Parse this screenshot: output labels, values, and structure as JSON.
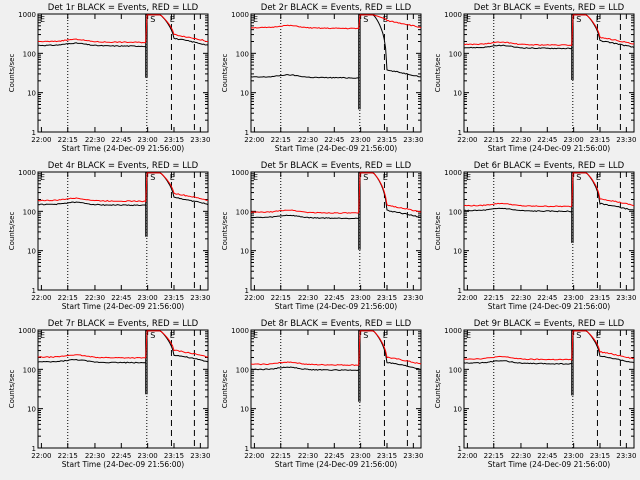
{
  "chart_data": [
    {
      "type": "line",
      "title": "Det 1r BLACK = Events, RED = LLD",
      "ylabel": "Counts/sec",
      "xlabel": "Start Time (24-Dec-09 21:56:00)",
      "yscale": "log",
      "ylim": [
        1,
        1000
      ],
      "x_ticks": [
        "22:00",
        "22:15",
        "22:30",
        "22:45",
        "23:00",
        "23:15",
        "23:30"
      ],
      "y_ticks": [
        "1",
        "10",
        "100",
        "1000"
      ],
      "annotations": [
        "E",
        "S",
        "E"
      ],
      "series": [
        {
          "name": "Events",
          "color": "#000000",
          "base": 160
        },
        {
          "name": "LLD",
          "color": "#ff0000",
          "base": 200
        }
      ]
    },
    {
      "type": "line",
      "title": "Det 2r BLACK = Events, RED = LLD",
      "ylabel": "Counts/sec",
      "xlabel": "Start Time (24-Dec-09 21:56:00)",
      "yscale": "log",
      "ylim": [
        1,
        1000
      ],
      "x_ticks": [
        "22:00",
        "22:15",
        "22:30",
        "22:45",
        "23:00",
        "23:15",
        "23:30"
      ],
      "y_ticks": [
        "1",
        "10",
        "100",
        "1000"
      ],
      "annotations": [
        "E",
        "S",
        "E"
      ],
      "series": [
        {
          "name": "Events",
          "color": "#000000",
          "base": 25
        },
        {
          "name": "LLD",
          "color": "#ff0000",
          "base": 450
        }
      ]
    },
    {
      "type": "line",
      "title": "Det 3r BLACK = Events, RED = LLD",
      "ylabel": "Counts/sec",
      "xlabel": "Start Time (24-Dec-09 21:56:00)",
      "yscale": "log",
      "ylim": [
        1,
        1000
      ],
      "x_ticks": [
        "22:00",
        "22:15",
        "22:30",
        "22:45",
        "23:00",
        "23:15",
        "23:30"
      ],
      "y_ticks": [
        "1",
        "10",
        "100",
        "1000"
      ],
      "annotations": [
        "E",
        "S",
        "E"
      ],
      "series": [
        {
          "name": "Events",
          "color": "#000000",
          "base": 140
        },
        {
          "name": "LLD",
          "color": "#ff0000",
          "base": 170
        }
      ]
    },
    {
      "type": "line",
      "title": "Det 4r BLACK = Events, RED = LLD",
      "ylabel": "Counts/sec",
      "xlabel": "Start Time (24-Dec-09 21:56:00)",
      "yscale": "log",
      "ylim": [
        1,
        1000
      ],
      "x_ticks": [
        "22:00",
        "22:15",
        "22:30",
        "22:45",
        "23:00",
        "23:15",
        "23:30"
      ],
      "y_ticks": [
        "1",
        "10",
        "100",
        "1000"
      ],
      "annotations": [
        "E",
        "S",
        "E"
      ],
      "series": [
        {
          "name": "Events",
          "color": "#000000",
          "base": 150
        },
        {
          "name": "LLD",
          "color": "#ff0000",
          "base": 190
        }
      ]
    },
    {
      "type": "line",
      "title": "Det 5r BLACK = Events, RED = LLD",
      "ylabel": "Counts/sec",
      "xlabel": "Start Time (24-Dec-09 21:56:00)",
      "yscale": "log",
      "ylim": [
        1,
        1000
      ],
      "x_ticks": [
        "22:00",
        "22:15",
        "22:30",
        "22:45",
        "23:00",
        "23:15",
        "23:30"
      ],
      "y_ticks": [
        "1",
        "10",
        "100",
        "1000"
      ],
      "annotations": [
        "E",
        "S",
        "E"
      ],
      "series": [
        {
          "name": "Events",
          "color": "#000000",
          "base": 70
        },
        {
          "name": "LLD",
          "color": "#ff0000",
          "base": 95
        }
      ]
    },
    {
      "type": "line",
      "title": "Det 6r BLACK = Events, RED = LLD",
      "ylabel": "Counts/sec",
      "xlabel": "Start Time (24-Dec-09 21:56:00)",
      "yscale": "log",
      "ylim": [
        1,
        1000
      ],
      "x_ticks": [
        "22:00",
        "22:15",
        "22:30",
        "22:45",
        "23:00",
        "23:15",
        "23:30"
      ],
      "y_ticks": [
        "1",
        "10",
        "100",
        "1000"
      ],
      "annotations": [
        "E",
        "S",
        "E"
      ],
      "series": [
        {
          "name": "Events",
          "color": "#000000",
          "base": 105
        },
        {
          "name": "LLD",
          "color": "#ff0000",
          "base": 140
        }
      ]
    },
    {
      "type": "line",
      "title": "Det 7r BLACK = Events, RED = LLD",
      "ylabel": "Counts/sec",
      "xlabel": "Start Time (24-Dec-09 21:56:00)",
      "yscale": "log",
      "ylim": [
        1,
        1000
      ],
      "x_ticks": [
        "22:00",
        "22:15",
        "22:30",
        "22:45",
        "23:00",
        "23:15",
        "23:30"
      ],
      "y_ticks": [
        "1",
        "10",
        "100",
        "1000"
      ],
      "annotations": [
        "E",
        "S",
        "E"
      ],
      "series": [
        {
          "name": "Events",
          "color": "#000000",
          "base": 155
        },
        {
          "name": "LLD",
          "color": "#ff0000",
          "base": 205
        }
      ]
    },
    {
      "type": "line",
      "title": "Det 8r BLACK = Events, RED = LLD",
      "ylabel": "Counts/sec",
      "xlabel": "Start Time (24-Dec-09 21:56:00)",
      "yscale": "log",
      "ylim": [
        1,
        1000
      ],
      "x_ticks": [
        "22:00",
        "22:15",
        "22:30",
        "22:45",
        "23:00",
        "23:15",
        "23:30"
      ],
      "y_ticks": [
        "1",
        "10",
        "100",
        "1000"
      ],
      "annotations": [
        "E",
        "S",
        "E"
      ],
      "series": [
        {
          "name": "Events",
          "color": "#000000",
          "base": 100
        },
        {
          "name": "LLD",
          "color": "#ff0000",
          "base": 135
        }
      ]
    },
    {
      "type": "line",
      "title": "Det 9r BLACK = Events, RED = LLD",
      "ylabel": "Counts/sec",
      "xlabel": "Start Time (24-Dec-09 21:56:00)",
      "yscale": "log",
      "ylim": [
        1,
        1000
      ],
      "x_ticks": [
        "22:00",
        "22:15",
        "22:30",
        "22:45",
        "23:00",
        "23:15",
        "23:30"
      ],
      "y_ticks": [
        "1",
        "10",
        "100",
        "1000"
      ],
      "annotations": [
        "E",
        "S",
        "E"
      ],
      "series": [
        {
          "name": "Events",
          "color": "#000000",
          "base": 145
        },
        {
          "name": "LLD",
          "color": "#ff0000",
          "base": 185
        }
      ]
    }
  ]
}
